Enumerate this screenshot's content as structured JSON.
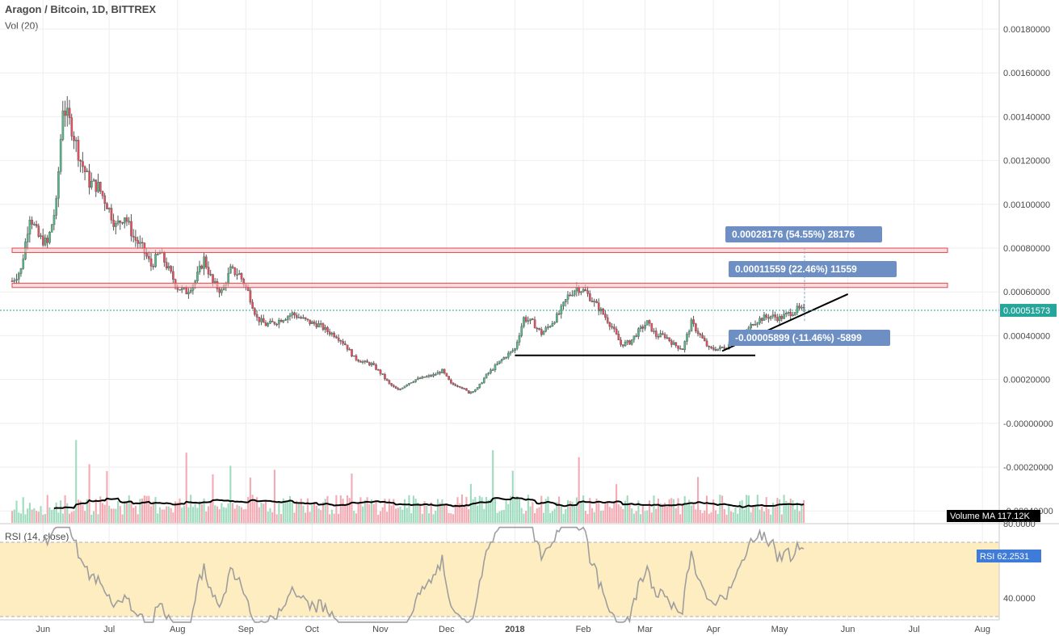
{
  "header": {
    "title": "Aragon / Bitcoin, 1D, BITTREX",
    "volume_label": "Vol (20)",
    "rsi_label": "RSI (14, close)"
  },
  "colors": {
    "up": "#53b987",
    "down": "#eb4d5c",
    "vol_up": "#9fdcbf",
    "vol_down": "#f3aab3",
    "zone_fill": "#f6c8c8",
    "zone_stroke": "#e0474f",
    "rsi_band": "#fdedc0",
    "rsi_line": "#9e9e9e",
    "rsi_peak": "#3f7bd9",
    "measure_box": "#6d8fc4",
    "last_price_bg": "#26a69a"
  },
  "chart_data": {
    "type": "candlestick",
    "symbol": "Aragon / Bitcoin",
    "interval": "1D",
    "exchange": "BITTREX",
    "x_ticks": [
      "Jun",
      "Jul",
      "Aug",
      "Sep",
      "Oct",
      "Nov",
      "Dec",
      "2018",
      "Feb",
      "Mar",
      "Apr",
      "May",
      "Jun",
      "Jul",
      "Aug"
    ],
    "y_ticks": [
      "0.00180000",
      "0.00160000",
      "0.00140000",
      "0.00120000",
      "0.00100000",
      "0.00080000",
      "0.00060000",
      "0.00040000",
      "0.00020000",
      "-0.00000000",
      "-0.00020000",
      "-0.00040000"
    ],
    "ylim": [
      -0.0004,
      0.0019
    ],
    "last_price": "0.00051573",
    "price_path": [
      [
        "2017-05-18",
        0.00065
      ],
      [
        "2017-05-22",
        0.0007
      ],
      [
        "2017-05-26",
        0.00095
      ],
      [
        "2017-05-30",
        0.00085
      ],
      [
        "2017-06-03",
        0.00082
      ],
      [
        "2017-06-07",
        0.001
      ],
      [
        "2017-06-10",
        0.00145
      ],
      [
        "2017-06-14",
        0.00135
      ],
      [
        "2017-06-18",
        0.0012
      ],
      [
        "2017-06-22",
        0.0011
      ],
      [
        "2017-06-26",
        0.00108
      ],
      [
        "2017-06-30",
        0.001
      ],
      [
        "2017-07-04",
        0.0009
      ],
      [
        "2017-07-08",
        0.00095
      ],
      [
        "2017-07-12",
        0.00085
      ],
      [
        "2017-07-16",
        0.0008
      ],
      [
        "2017-07-20",
        0.00072
      ],
      [
        "2017-07-24",
        0.00078
      ],
      [
        "2017-07-28",
        0.0007
      ],
      [
        "2017-08-01",
        0.00062
      ],
      [
        "2017-08-05",
        0.0006
      ],
      [
        "2017-08-09",
        0.00065
      ],
      [
        "2017-08-13",
        0.00075
      ],
      [
        "2017-08-17",
        0.00064
      ],
      [
        "2017-08-21",
        0.0006
      ],
      [
        "2017-08-25",
        0.0007
      ],
      [
        "2017-08-29",
        0.00068
      ],
      [
        "2017-09-02",
        0.0006
      ],
      [
        "2017-09-06",
        0.00048
      ],
      [
        "2017-09-10",
        0.00045
      ],
      [
        "2017-09-14",
        0.00046
      ],
      [
        "2017-09-18",
        0.00048
      ],
      [
        "2017-09-22",
        0.0005
      ],
      [
        "2017-09-26",
        0.00048
      ],
      [
        "2017-09-30",
        0.00046
      ],
      [
        "2017-10-04",
        0.00045
      ],
      [
        "2017-10-08",
        0.00042
      ],
      [
        "2017-10-12",
        0.0004
      ],
      [
        "2017-10-16",
        0.00036
      ],
      [
        "2017-10-20",
        0.0003
      ],
      [
        "2017-10-24",
        0.00028
      ],
      [
        "2017-10-28",
        0.00027
      ],
      [
        "2017-11-01",
        0.00023
      ],
      [
        "2017-11-05",
        0.00018
      ],
      [
        "2017-11-09",
        0.00015
      ],
      [
        "2017-11-13",
        0.00018
      ],
      [
        "2017-11-17",
        0.0002
      ],
      [
        "2017-11-21",
        0.00021
      ],
      [
        "2017-11-25",
        0.00022
      ],
      [
        "2017-11-29",
        0.00024
      ],
      [
        "2017-12-03",
        0.00018
      ],
      [
        "2017-12-07",
        0.00017
      ],
      [
        "2017-12-11",
        0.00014
      ],
      [
        "2017-12-15",
        0.00016
      ],
      [
        "2017-12-19",
        0.00022
      ],
      [
        "2017-12-23",
        0.00026
      ],
      [
        "2017-12-27",
        0.0003
      ],
      [
        "2018-01-01",
        0.00034
      ],
      [
        "2018-01-05",
        0.00048
      ],
      [
        "2018-01-09",
        0.00046
      ],
      [
        "2018-01-13",
        0.00041
      ],
      [
        "2018-01-17",
        0.00045
      ],
      [
        "2018-01-21",
        0.0005
      ],
      [
        "2018-01-25",
        0.00058
      ],
      [
        "2018-01-29",
        0.00062
      ],
      [
        "2018-02-02",
        0.0006
      ],
      [
        "2018-02-06",
        0.00055
      ],
      [
        "2018-02-10",
        0.0005
      ],
      [
        "2018-02-14",
        0.00044
      ],
      [
        "2018-02-18",
        0.00036
      ],
      [
        "2018-02-22",
        0.00037
      ],
      [
        "2018-02-26",
        0.00042
      ],
      [
        "2018-03-02",
        0.00046
      ],
      [
        "2018-03-06",
        0.0004
      ],
      [
        "2018-03-10",
        0.0004
      ],
      [
        "2018-03-14",
        0.00036
      ],
      [
        "2018-03-18",
        0.00034
      ],
      [
        "2018-03-22",
        0.00046
      ],
      [
        "2018-03-26",
        0.0004
      ],
      [
        "2018-03-30",
        0.00034
      ],
      [
        "2018-04-03",
        0.00034
      ],
      [
        "2018-04-07",
        0.00035
      ],
      [
        "2018-04-11",
        0.00038
      ],
      [
        "2018-04-15",
        0.0004
      ],
      [
        "2018-04-19",
        0.00046
      ],
      [
        "2018-04-23",
        0.00048
      ],
      [
        "2018-04-27",
        0.00049
      ],
      [
        "2018-05-01",
        0.00048
      ],
      [
        "2018-05-05",
        0.0005
      ],
      [
        "2018-05-09",
        0.00052
      ],
      [
        "2018-05-12",
        0.00051573
      ]
    ],
    "resistance_zones": [
      {
        "from": 0.00078,
        "to": 0.0008
      },
      {
        "from": 0.00062,
        "to": 0.00064
      }
    ],
    "support_line": {
      "x1": "2018-01-01",
      "x2": "2018-04-20",
      "y": 0.00031
    },
    "trend_line": {
      "x1": "2018-04-05",
      "y1": 0.00033,
      "x2": "2018-06-01",
      "y2": 0.00059
    },
    "measurements": [
      {
        "label": "0.00028176 (54.55%) 28176",
        "target": 0.0008
      },
      {
        "label": "0.00011559 (22.46%) 11559",
        "target": 0.00064
      },
      {
        "label": "-0.00005899 (-11.46%) -5899",
        "target": 0.00046
      }
    ],
    "volume_ma": {
      "label": "Volume MA",
      "value": "117.12K"
    },
    "rsi": {
      "period": 14,
      "value": "62.2531",
      "ticks": [
        "80.0000",
        "40.0000"
      ],
      "band": [
        30,
        70
      ]
    }
  }
}
